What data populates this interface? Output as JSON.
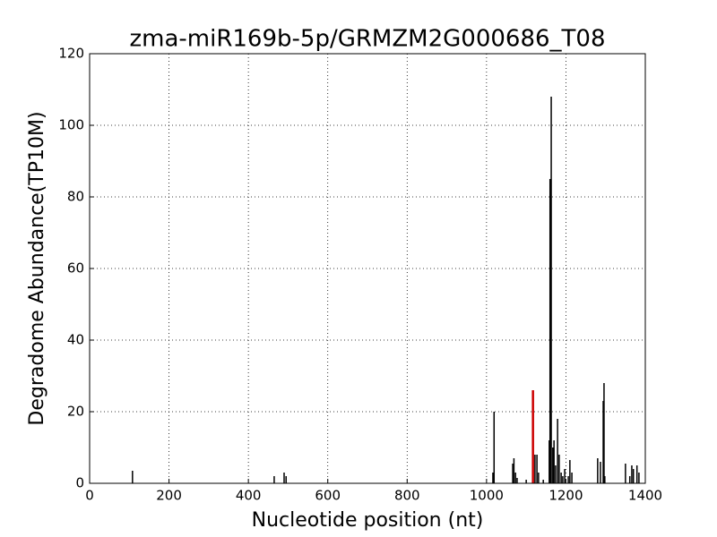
{
  "chart_data": {
    "type": "stem",
    "title": "zma-miR169b-5p/GRMZM2G000686_T08",
    "x_label": "Nucleotide position (nt)",
    "y_label": "Degradome Abundance(TP10M)",
    "series": [
      {
        "color": "#000000",
        "x": [
          108,
          465,
          490,
          495,
          1016,
          1019,
          1066,
          1069,
          1073,
          1077,
          1100,
          1122,
          1127,
          1131,
          1143,
          1158,
          1160,
          1163,
          1167,
          1170,
          1174,
          1179,
          1183,
          1188,
          1192,
          1197,
          1206,
          1210,
          1215,
          1280,
          1287,
          1294,
          1296,
          1298,
          1350,
          1361,
          1366,
          1370,
          1379,
          1384
        ],
        "values": [
          3.5,
          2,
          3,
          2,
          3,
          20,
          5.5,
          7,
          3,
          1.5,
          1,
          8,
          8,
          3,
          1,
          12,
          85,
          108,
          10,
          12,
          5,
          18,
          8,
          3,
          2,
          4,
          2,
          6.5,
          3,
          7,
          6,
          23,
          28,
          2,
          5.5,
          2,
          5,
          4,
          5,
          3
        ]
      },
      {
        "color": "#cc0000",
        "x": [
          1117
        ],
        "values": [
          26
        ]
      }
    ],
    "xlim": [
      0,
      1400
    ],
    "xticks": [
      0,
      200,
      400,
      600,
      800,
      1000,
      1200,
      1400
    ],
    "ylim": [
      0,
      120
    ],
    "yticks": [
      0,
      20,
      40,
      60,
      80,
      100,
      120
    ],
    "grid": true
  }
}
